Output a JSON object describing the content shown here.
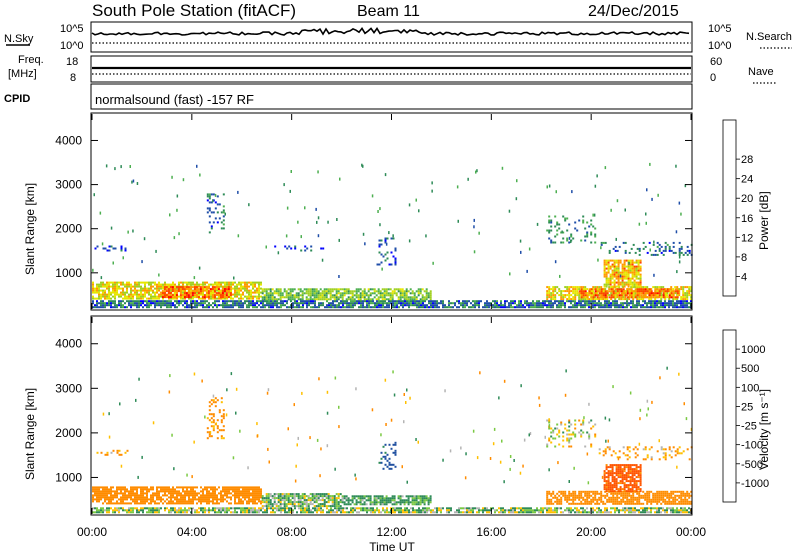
{
  "header": {
    "station": "South Pole Station (fitACF)",
    "beam": "Beam 11",
    "date": "24/Dec/2015"
  },
  "summary_panels": {
    "nsky_label": "N.Sky",
    "nsearch_label": "N.Search",
    "nsky_ticks": [
      "10^5",
      "10^0"
    ],
    "nsearch_ticks": [
      "10^5",
      "10^0"
    ],
    "freq_label_1": "Freq.",
    "freq_label_2": "[MHz]",
    "freq_ticks": [
      "18",
      "8"
    ],
    "nave_label": "Nave",
    "nave_ticks": [
      "60",
      "0"
    ],
    "cpid_label": "CPID",
    "cpid_text": "normalsound (fast) -157 RF"
  },
  "colors": {
    "power": [
      "#0000ff",
      "#1f4ea8",
      "#2e8b57",
      "#4caf50",
      "#a0d020",
      "#e6e600",
      "#ff9900",
      "#ff4400",
      "#ff0000"
    ],
    "velocity": [
      "#ff0000",
      "#ff5500",
      "#ff8c00",
      "#ffc000",
      "#b4b4b4",
      "#7ac943",
      "#2e8b57",
      "#2050a0",
      "#0000ff"
    ]
  },
  "chart_data": [
    {
      "type": "heatmap",
      "name": "power-panel",
      "ylabel": "Slant Range [km]",
      "xlabel": "Time UT",
      "x_ticks": [
        "00:00",
        "04:00",
        "08:00",
        "12:00",
        "16:00",
        "20:00",
        "00:00"
      ],
      "x_range_hours": [
        0,
        24
      ],
      "y_ticks": [
        1000,
        2000,
        3000,
        4000
      ],
      "ylim": [
        180,
        4600
      ],
      "colorbar": {
        "label": "Power [dB]",
        "ticks": [
          "4",
          "8",
          "12",
          "16",
          "20",
          "24",
          "28"
        ],
        "range": [
          0,
          32
        ]
      },
      "bands": [
        {
          "t0": 0.0,
          "t1": 6.8,
          "r0": 400,
          "r1": 800,
          "val": 22
        },
        {
          "t0": 2.8,
          "t1": 5.6,
          "r0": 450,
          "r1": 700,
          "val": 28
        },
        {
          "t0": 6.8,
          "t1": 13.6,
          "r0": 380,
          "r1": 650,
          "val": 16
        },
        {
          "t0": 18.2,
          "t1": 24.0,
          "r0": 400,
          "r1": 700,
          "val": 22
        },
        {
          "t0": 19.5,
          "t1": 23.5,
          "r0": 450,
          "r1": 650,
          "val": 28
        },
        {
          "t0": 20.5,
          "t1": 22.0,
          "r0": 700,
          "r1": 1300,
          "val": 24
        },
        {
          "t0": 0.0,
          "t1": 24.0,
          "r0": 200,
          "r1": 380,
          "val": 8
        }
      ],
      "echo_bands": [
        {
          "t0": 0.1,
          "t1": 1.4,
          "r0": 1500,
          "r1": 1620,
          "val": 6
        },
        {
          "t0": 7.3,
          "t1": 9.3,
          "r0": 1500,
          "r1": 1620,
          "val": 6
        },
        {
          "t0": 4.6,
          "t1": 5.3,
          "r0": 1900,
          "r1": 2800,
          "val": 8
        },
        {
          "t0": 11.4,
          "t1": 12.2,
          "r0": 1200,
          "r1": 1800,
          "val": 6
        },
        {
          "t0": 18.2,
          "t1": 20.2,
          "r0": 1700,
          "r1": 2300,
          "val": 10
        },
        {
          "t0": 20.3,
          "t1": 24.0,
          "r0": 1400,
          "r1": 1700,
          "val": 8
        }
      ]
    },
    {
      "type": "heatmap",
      "name": "velocity-panel",
      "ylabel": "Slant Range [km]",
      "xlabel": "Time UT",
      "x_ticks": [
        "00:00",
        "04:00",
        "08:00",
        "12:00",
        "16:00",
        "20:00",
        "00:00"
      ],
      "x_range_hours": [
        0,
        24
      ],
      "y_ticks": [
        1000,
        2000,
        3000,
        4000
      ],
      "ylim": [
        180,
        4600
      ],
      "colorbar": {
        "label": "Velocity [m s⁻¹]",
        "ticks": [
          "1000",
          "500",
          "100",
          "25",
          "-25",
          "-100",
          "-500",
          "-1000"
        ]
      },
      "bands": [
        {
          "t0": 0.0,
          "t1": 6.8,
          "r0": 400,
          "r1": 800,
          "val": -300
        },
        {
          "t0": 6.8,
          "t1": 10.0,
          "r0": 380,
          "r1": 650,
          "val": 80
        },
        {
          "t0": 10.0,
          "t1": 13.6,
          "r0": 380,
          "r1": 600,
          "val": 150
        },
        {
          "t0": 18.2,
          "t1": 24.0,
          "r0": 400,
          "r1": 700,
          "val": -300
        },
        {
          "t0": 20.5,
          "t1": 22.0,
          "r0": 700,
          "r1": 1300,
          "val": -600
        },
        {
          "t0": 0.0,
          "t1": 24.0,
          "r0": 200,
          "r1": 330,
          "val": 50
        }
      ],
      "echo_bands": [
        {
          "t0": 0.1,
          "t1": 1.4,
          "r0": 1500,
          "r1": 1620,
          "val": -120
        },
        {
          "t0": 4.6,
          "t1": 5.3,
          "r0": 1900,
          "r1": 2800,
          "val": -200
        },
        {
          "t0": 11.4,
          "t1": 12.2,
          "r0": 1200,
          "r1": 1800,
          "val": 600
        },
        {
          "t0": 18.2,
          "t1": 20.2,
          "r0": 1700,
          "r1": 2300,
          "val": 0
        },
        {
          "t0": 20.3,
          "t1": 24.0,
          "r0": 1400,
          "r1": 1700,
          "val": -120
        }
      ]
    }
  ]
}
